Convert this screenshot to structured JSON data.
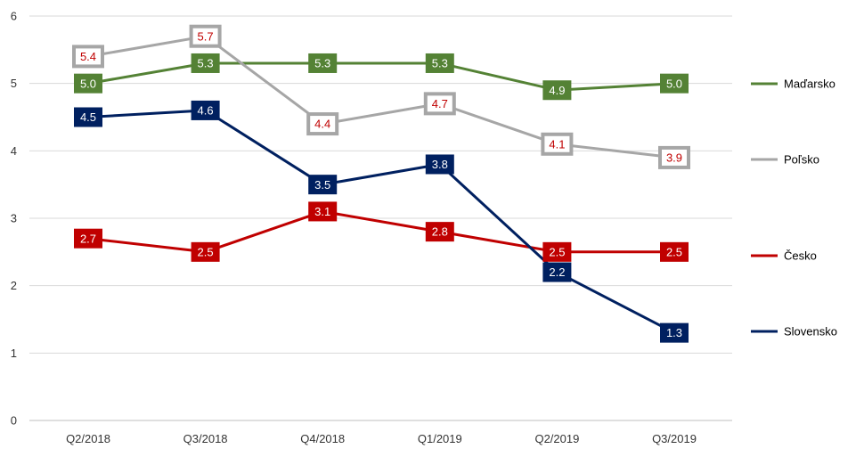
{
  "chart_data": {
    "type": "line",
    "title": "",
    "xlabel": "",
    "ylabel": "",
    "categories": [
      "Q2/2018",
      "Q3/2018",
      "Q4/2018",
      "Q1/2019",
      "Q2/2019",
      "Q3/2019"
    ],
    "yticks": [
      "0",
      "1",
      "2",
      "3",
      "4",
      "5",
      "6"
    ],
    "ylim": [
      0,
      6
    ],
    "grid": "horizontal",
    "legend_position": "right",
    "series": [
      {
        "name": "Maďarsko",
        "color": "#548235",
        "label_style": "filled",
        "label_text_color": "#ffffff",
        "values": [
          5.0,
          5.3,
          5.3,
          5.3,
          4.9,
          5.0
        ],
        "labels": [
          "5.0",
          "5.3",
          "5.3",
          "5.3",
          "4.9",
          "5.0"
        ]
      },
      {
        "name": "Poľsko",
        "color": "#a6a6a6",
        "label_style": "outlined",
        "label_text_color": "#c00000",
        "values": [
          5.4,
          5.7,
          4.4,
          4.7,
          4.1,
          3.9
        ],
        "labels": [
          "5.4",
          "5.7",
          "4.4",
          "4.7",
          "4.1",
          "3.9"
        ]
      },
      {
        "name": "Česko",
        "color": "#c00000",
        "label_style": "filled",
        "label_text_color": "#ffffff",
        "values": [
          2.7,
          2.5,
          3.1,
          2.8,
          2.5,
          2.5
        ],
        "labels": [
          "2.7",
          "2.5",
          "3.1",
          "2.8",
          "2.5",
          "2.5"
        ]
      },
      {
        "name": "Slovensko",
        "color": "#002060",
        "label_style": "filled",
        "label_text_color": "#ffffff",
        "values": [
          4.5,
          4.6,
          3.5,
          3.8,
          2.2,
          1.3
        ],
        "labels": [
          "4.5",
          "4.6",
          "3.5",
          "3.8",
          "2.2",
          "1.3"
        ]
      }
    ]
  }
}
